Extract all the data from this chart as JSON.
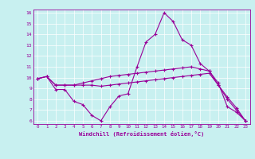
{
  "xlabel": "Windchill (Refroidissement éolien,°C)",
  "background_color": "#c8f0f0",
  "line_color": "#990099",
  "xlim": [
    -0.5,
    23.5
  ],
  "ylim": [
    5.7,
    16.3
  ],
  "xticks": [
    0,
    1,
    2,
    3,
    4,
    5,
    6,
    7,
    8,
    9,
    10,
    11,
    12,
    13,
    14,
    15,
    16,
    17,
    18,
    19,
    20,
    21,
    22,
    23
  ],
  "yticks": [
    6,
    7,
    8,
    9,
    10,
    11,
    12,
    13,
    14,
    15,
    16
  ],
  "series": [
    [
      9.9,
      10.1,
      8.9,
      8.9,
      7.8,
      7.5,
      6.5,
      6.0,
      7.3,
      8.3,
      8.5,
      11.0,
      13.3,
      14.0,
      16.0,
      15.2,
      13.5,
      13.0,
      11.3,
      10.6,
      9.5,
      7.3,
      6.8,
      6.0
    ],
    [
      9.9,
      10.1,
      9.3,
      9.3,
      9.3,
      9.3,
      9.3,
      9.2,
      9.3,
      9.4,
      9.5,
      9.6,
      9.7,
      9.8,
      9.9,
      10.0,
      10.1,
      10.2,
      10.3,
      10.4,
      9.3,
      8.2,
      7.2,
      6.0
    ],
    [
      9.9,
      10.1,
      9.3,
      9.3,
      9.3,
      9.5,
      9.7,
      9.9,
      10.1,
      10.2,
      10.3,
      10.4,
      10.5,
      10.6,
      10.7,
      10.8,
      10.9,
      11.0,
      10.8,
      10.6,
      9.3,
      8.0,
      7.0,
      6.0
    ]
  ]
}
